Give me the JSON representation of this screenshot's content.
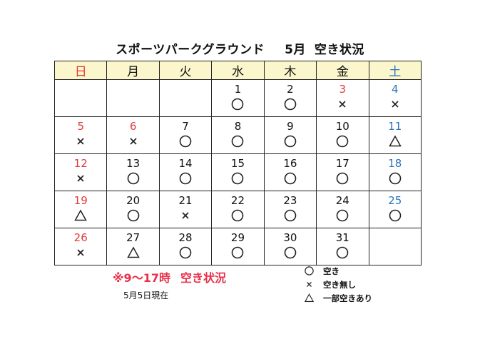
{
  "title": {
    "name": "スポーツパークグラウンド",
    "month": "5月",
    "status": "空き状況"
  },
  "weekdays": [
    "日",
    "月",
    "火",
    "水",
    "木",
    "金",
    "土"
  ],
  "weeks": [
    [
      null,
      null,
      null,
      {
        "day": "1",
        "mark": "circle"
      },
      {
        "day": "2",
        "mark": "circle"
      },
      {
        "day": "3",
        "mark": "cross",
        "color": "red"
      },
      {
        "day": "4",
        "mark": "cross",
        "color": "blue"
      }
    ],
    [
      {
        "day": "5",
        "mark": "cross",
        "color": "red"
      },
      {
        "day": "6",
        "mark": "cross",
        "color": "red"
      },
      {
        "day": "7",
        "mark": "circle"
      },
      {
        "day": "8",
        "mark": "circle"
      },
      {
        "day": "9",
        "mark": "circle"
      },
      {
        "day": "10",
        "mark": "circle"
      },
      {
        "day": "11",
        "mark": "triangle",
        "color": "blue"
      }
    ],
    [
      {
        "day": "12",
        "mark": "cross",
        "color": "red"
      },
      {
        "day": "13",
        "mark": "circle"
      },
      {
        "day": "14",
        "mark": "circle"
      },
      {
        "day": "15",
        "mark": "circle"
      },
      {
        "day": "16",
        "mark": "circle"
      },
      {
        "day": "17",
        "mark": "circle"
      },
      {
        "day": "18",
        "mark": "circle",
        "color": "blue"
      }
    ],
    [
      {
        "day": "19",
        "mark": "triangle",
        "color": "red"
      },
      {
        "day": "20",
        "mark": "circle"
      },
      {
        "day": "21",
        "mark": "cross"
      },
      {
        "day": "22",
        "mark": "circle"
      },
      {
        "day": "23",
        "mark": "circle"
      },
      {
        "day": "24",
        "mark": "circle"
      },
      {
        "day": "25",
        "mark": "circle",
        "color": "blue"
      }
    ],
    [
      {
        "day": "26",
        "mark": "cross",
        "color": "red"
      },
      {
        "day": "27",
        "mark": "triangle"
      },
      {
        "day": "28",
        "mark": "circle"
      },
      {
        "day": "29",
        "mark": "circle"
      },
      {
        "day": "30",
        "mark": "circle"
      },
      {
        "day": "31",
        "mark": "circle"
      },
      null
    ]
  ],
  "note": {
    "prefix": "※9～17時",
    "text": "空き状況"
  },
  "as_of": "5月5日現在",
  "legend": [
    {
      "mark": "circle",
      "label": "空き"
    },
    {
      "mark": "cross",
      "label": "空き無し"
    },
    {
      "mark": "triangle",
      "label": "一部空きあり"
    }
  ],
  "colors": {
    "header_bg": "#fbf6cc",
    "sunday": "#e23a3a",
    "saturday": "#2a73c0",
    "note": "#e8304a"
  }
}
